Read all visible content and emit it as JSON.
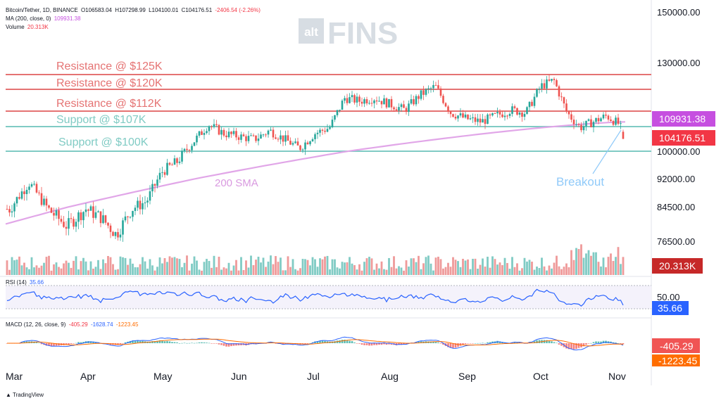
{
  "header": {
    "symbol_line": "Bitcoin/Tether, 1D, BINANCE",
    "ohlc": {
      "o": "O106583.04",
      "h": "H107298.99",
      "l": "L104100.01",
      "c": "C104176.51",
      "chg": "-2406.54 (-2.26%)"
    },
    "ma_label": "MA (200, close, 0)",
    "ma_value": "109931.38",
    "volume_label": "Volume",
    "volume_value": "20.313K"
  },
  "watermark": {
    "alt": "alt",
    "fins": "FINS"
  },
  "price_axis_labels": [
    "150000.00",
    "130000.00",
    "100000.00",
    "92000.00",
    "84500.00",
    "76500.00"
  ],
  "price_badges": {
    "ma": "109931.38",
    "last": "104176.51",
    "volume": "20.313K"
  },
  "annotations": {
    "res125": "Resistance @ $125K",
    "res120": "Resistance @ $120K",
    "res112": "Resistance @ $112K",
    "sup107": "Support @ $107K",
    "sup100": "Support @ $100K",
    "sma": "200 SMA",
    "breakout": "Breakout"
  },
  "rsi": {
    "label": "RSI (14)",
    "value": "35.66",
    "axis": "50.00"
  },
  "macd": {
    "label": "MACD (12, 26, close, 9)",
    "v1": "-405.29",
    "v2": "-1628.74",
    "v3": "-1223.45",
    "badge1": "-405.29",
    "badge2": "-1223.45"
  },
  "months": [
    "Mar",
    "Apr",
    "May",
    "Jun",
    "Jul",
    "Aug",
    "Sep",
    "Oct",
    "Nov"
  ],
  "footer": "TradingView",
  "colors": {
    "up": "#26a69a",
    "down": "#ef5350",
    "resistance": "#e57373",
    "support": "#80cbc4",
    "sma": "#e1a6e8",
    "rsi": "#2962ff",
    "macd": "#2962ff",
    "signal": "#ff6d00",
    "breakout": "#90caf9"
  },
  "chart_data": {
    "type": "candlestick",
    "title": "Bitcoin/Tether, 1D, BINANCE",
    "levels": [
      {
        "label": "Resistance @ $125K",
        "value": 125000
      },
      {
        "label": "Resistance @ $120K",
        "value": 120000
      },
      {
        "label": "Resistance @ $112K",
        "value": 112000
      },
      {
        "label": "Support @ $107K",
        "value": 107000
      },
      {
        "label": "Support @ $100K",
        "value": 100000
      }
    ],
    "close_path": [
      [
        "Mar",
        84000
      ],
      [
        "Mar",
        91000
      ],
      [
        "Mar",
        84000
      ],
      [
        "Mar",
        80000
      ],
      [
        "Apr",
        84000
      ],
      [
        "Apr",
        82000
      ],
      [
        "Apr",
        78000
      ],
      [
        "Apr",
        84000
      ],
      [
        "Apr",
        86000
      ],
      [
        "May",
        94000
      ],
      [
        "May",
        97000
      ],
      [
        "May",
        103000
      ],
      [
        "May",
        109000
      ],
      [
        "May",
        106000
      ],
      [
        "Jun",
        105000
      ],
      [
        "Jun",
        104000
      ],
      [
        "Jun",
        107000
      ],
      [
        "Jun",
        104000
      ],
      [
        "Jun",
        101000
      ],
      [
        "Jul",
        106000
      ],
      [
        "Jul",
        108000
      ],
      [
        "Jul",
        118000
      ],
      [
        "Jul",
        117000
      ],
      [
        "Jul",
        118000
      ],
      [
        "Aug",
        116000
      ],
      [
        "Aug",
        114000
      ],
      [
        "Aug",
        119000
      ],
      [
        "Aug",
        122000
      ],
      [
        "Aug",
        113000
      ],
      [
        "Sep",
        111000
      ],
      [
        "Sep",
        110000
      ],
      [
        "Sep",
        112000
      ],
      [
        "Sep",
        114000
      ],
      [
        "Sep",
        113000
      ],
      [
        "Oct",
        122000
      ],
      [
        "Oct",
        124000
      ],
      [
        "Oct",
        113000
      ],
      [
        "Oct",
        108000
      ],
      [
        "Oct",
        110000
      ],
      [
        "Oct",
        112000
      ],
      [
        "Nov",
        109000
      ],
      [
        "Nov",
        106583
      ],
      [
        "Nov",
        104176.51
      ]
    ],
    "sma200": {
      "name": "MA (200, close, 0)",
      "last": 109931.38
    },
    "last_close": 104176.51,
    "volume_last": "20.313K",
    "rsi_last": 35.66,
    "macd_last": {
      "macd": -405.29,
      "signal": -1628.74,
      "hist": -1223.45
    }
  }
}
